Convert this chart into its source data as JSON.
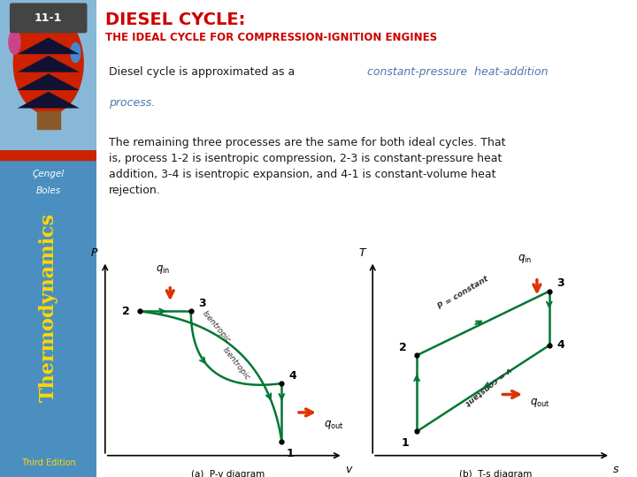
{
  "title_line1": "DIESEL CYCLE:",
  "title_line2": "THE IDEAL CYCLE FOR COMPRESSION-IGNITION ENGINES",
  "slide_number": "11-1",
  "title_color": "#cc0000",
  "left_label1": "Çengel",
  "left_label2": "Boles",
  "left_label3": "Thermodynamics",
  "left_label4": "Third Edition",
  "body_text1_normal": "Diesel cycle is approximated as a ",
  "body_text1_italic": "constant-pressure  heat-addition",
  "body_text1_italic2": "process",
  "body_text2": "The remaining three processes are the same for both ideal cycles. That\nis, process 1-2 is isentropic compression, 2-3 is constant-pressure heat\naddition, 3-4 is isentropic expansion, and 4-1 is constant-volume heat\nrejection.",
  "italic_color": "#4a7aad",
  "body_text_color": "#1a1a1a",
  "diagram_bg": "#ffffff",
  "green_color": "#007733",
  "arrow_color": "#dd3300",
  "left_sidebar_color": "#5599cc"
}
